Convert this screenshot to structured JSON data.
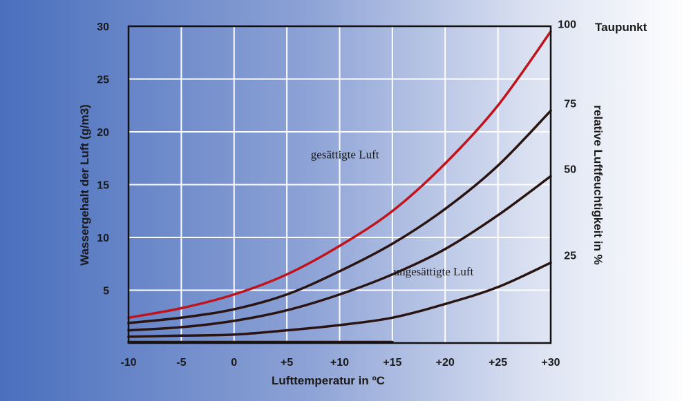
{
  "chart_data": {
    "type": "line",
    "xlabel": "Lufttemperatur in ºC",
    "ylabel": "Wassergehalt der Luft (g/m3)",
    "y2label": "relative Luftfeuchtigkeit in %",
    "xlim": [
      -10,
      30
    ],
    "ylim": [
      0,
      30
    ],
    "grid": true,
    "x_ticks": [
      "-10",
      "-5",
      "0",
      "+5",
      "+10",
      "+15",
      "+20",
      "+25",
      "+30"
    ],
    "y_ticks": [
      "5",
      "10",
      "15",
      "20",
      "25",
      "30"
    ],
    "y2_ticks": [
      "25",
      "50",
      "75",
      "100"
    ],
    "dewpoint_label": "Taupunkt",
    "annotations": [
      {
        "text": "gesättigte Luft",
        "x": 10.5,
        "y": 17.5
      },
      {
        "text": "ungesättigte Luft",
        "x": 18.9,
        "y": 6.4
      }
    ],
    "x": [
      -10,
      -5,
      0,
      5,
      10,
      15,
      20,
      25,
      30
    ],
    "series": [
      {
        "name": "100",
        "color": "#c0141c",
        "values": [
          2.4,
          3.3,
          4.6,
          6.5,
          9.2,
          12.5,
          17.0,
          22.5,
          29.5
        ]
      },
      {
        "name": "75",
        "color": "#2a1412",
        "values": [
          1.9,
          2.4,
          3.2,
          4.6,
          6.8,
          9.4,
          12.7,
          16.8,
          22.0
        ]
      },
      {
        "name": "50",
        "color": "#2a1412",
        "values": [
          1.2,
          1.5,
          2.1,
          3.1,
          4.6,
          6.5,
          8.9,
          12.1,
          15.8
        ]
      },
      {
        "name": "25",
        "color": "#2a1412",
        "values": [
          0.6,
          0.7,
          0.8,
          1.2,
          1.7,
          2.4,
          3.7,
          5.3,
          7.6
        ]
      },
      {
        "name": "",
        "color": "#2a1412",
        "values": [
          0.1,
          0.1,
          0.1,
          0.1,
          0.1,
          0.1,
          null,
          null,
          null
        ]
      }
    ]
  }
}
